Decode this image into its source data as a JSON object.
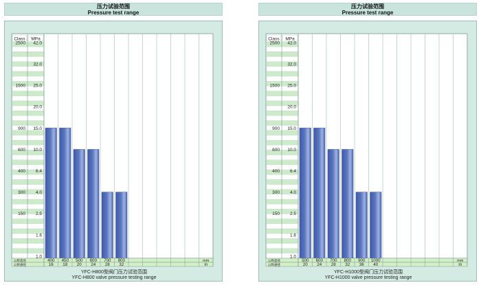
{
  "panels": [
    {
      "header_cn": "压力试验范围",
      "header_en": "Pressure test range",
      "caption_cn": "YFC-H800型阀门压力试验范围",
      "caption_en": "YFC-H800 valve pressure testing range",
      "chart_data": {
        "type": "bar",
        "y_scale": "categorical pressure classes (MPa)",
        "class_header": "Class",
        "mpa_header": "MPa",
        "y_levels": [
          {
            "mpa": "1.0",
            "class": ""
          },
          {
            "mpa": "1.6",
            "class": ""
          },
          {
            "mpa": "2.5",
            "class": "150"
          },
          {
            "mpa": "4.0",
            "class": "300"
          },
          {
            "mpa": "6.4",
            "class": "400"
          },
          {
            "mpa": "10.0",
            "class": "600"
          },
          {
            "mpa": "15.0",
            "class": "900"
          },
          {
            "mpa": "20.0",
            "class": ""
          },
          {
            "mpa": "25.0",
            "class": "1500"
          },
          {
            "mpa": "32.0",
            "class": ""
          },
          {
            "mpa": "42.0",
            "class": "2500"
          }
        ],
        "row_label_dn": "公称直径",
        "row_label_nps": "公称通径",
        "unit_mm": "mm",
        "unit_in": "in",
        "bars": [
          {
            "dn": "400",
            "nps": "16",
            "mpa": 15.0
          },
          {
            "dn": "450",
            "nps": "18",
            "mpa": 15.0
          },
          {
            "dn": "500",
            "nps": "20",
            "mpa": 10.0
          },
          {
            "dn": "600",
            "nps": "24",
            "mpa": 10.0
          },
          {
            "dn": "700",
            "nps": "28",
            "mpa": 4.0
          },
          {
            "dn": "800",
            "nps": "32",
            "mpa": 4.0
          }
        ],
        "bar_color": "#5a76c0",
        "grid": true
      }
    },
    {
      "header_cn": "压力试验范围",
      "header_en": "Pressure test range",
      "caption_cn": "YFC-H1000型阀门压力试验范围",
      "caption_en": "YFC-H1000 valve pressure testing range",
      "chart_data": {
        "type": "bar",
        "y_scale": "categorical pressure classes (MPa)",
        "class_header": "Class",
        "mpa_header": "MPa",
        "y_levels": [
          {
            "mpa": "1.0",
            "class": ""
          },
          {
            "mpa": "1.6",
            "class": ""
          },
          {
            "mpa": "2.5",
            "class": "150"
          },
          {
            "mpa": "4.0",
            "class": "300"
          },
          {
            "mpa": "6.4",
            "class": "400"
          },
          {
            "mpa": "10.0",
            "class": "600"
          },
          {
            "mpa": "15.0",
            "class": "900"
          },
          {
            "mpa": "20.0",
            "class": ""
          },
          {
            "mpa": "25.0",
            "class": "1500"
          },
          {
            "mpa": "32.0",
            "class": ""
          },
          {
            "mpa": "42.0",
            "class": "2500"
          }
        ],
        "row_label_dn": "公称直径",
        "row_label_nps": "公称通径",
        "unit_mm": "mm",
        "unit_in": "in",
        "bars": [
          {
            "dn": "500",
            "nps": "20",
            "mpa": 15.0
          },
          {
            "dn": "600",
            "nps": "24",
            "mpa": 15.0
          },
          {
            "dn": "700",
            "nps": "28",
            "mpa": 10.0
          },
          {
            "dn": "800",
            "nps": "32",
            "mpa": 10.0
          },
          {
            "dn": "900",
            "nps": "36",
            "mpa": 4.0
          },
          {
            "dn": "1000",
            "nps": "40",
            "mpa": 4.0
          }
        ],
        "bar_color": "#5a76c0",
        "grid": true
      }
    }
  ]
}
